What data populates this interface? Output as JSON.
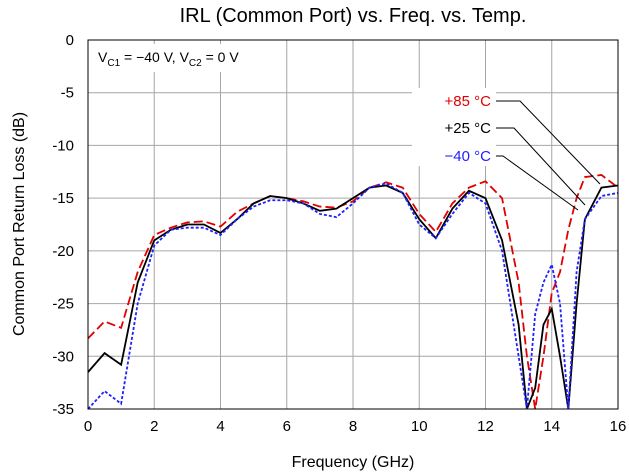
{
  "chart_data": {
    "type": "line",
    "title": "IRL (Common Port) vs. Freq. vs. Temp.",
    "xlabel": "Frequency (GHz)",
    "ylabel": "Common Port Return Loss (dB)",
    "annotation": [
      "V",
      "C1",
      " = −40 V, V",
      "C2",
      " = 0 V"
    ],
    "xlim": [
      0,
      16
    ],
    "xticks": [
      0,
      2,
      4,
      6,
      8,
      10,
      12,
      14,
      16
    ],
    "ylim": [
      -35,
      0
    ],
    "yticks": [
      0,
      -5,
      -10,
      -15,
      -20,
      -25,
      -30,
      -35
    ],
    "grid": true,
    "x": [
      0,
      0.5,
      1,
      1.5,
      2,
      2.5,
      3,
      3.5,
      4,
      4.5,
      5,
      5.5,
      6,
      6.5,
      7,
      7.5,
      8,
      8.5,
      9,
      9.5,
      10,
      10.5,
      11,
      11.5,
      12,
      12.5,
      13,
      13.25,
      13.5,
      13.75,
      14,
      14.25,
      14.5,
      14.75,
      15,
      15.5,
      16
    ],
    "series": [
      {
        "name": "+85 °C",
        "color": "#e00000",
        "dash": "9 4",
        "values": [
          -28.3,
          -26.7,
          -27.3,
          -22,
          -18.5,
          -17.8,
          -17.3,
          -17.2,
          -17.7,
          -16.3,
          -15.5,
          -14.8,
          -15,
          -15.3,
          -15.8,
          -15.9,
          -15.3,
          -14,
          -13.5,
          -14,
          -16.5,
          -18.2,
          -15.5,
          -14,
          -13.4,
          -15,
          -23,
          -30,
          -35,
          -30,
          -24,
          -22,
          -18,
          -15,
          -13,
          -12.8,
          -14
        ]
      },
      {
        "name": "+25 °C",
        "color": "#000000",
        "dash": "none",
        "values": [
          -31.5,
          -29.7,
          -30.8,
          -23,
          -19,
          -18,
          -17.5,
          -17.5,
          -18.3,
          -17,
          -15.5,
          -14.8,
          -15,
          -15.5,
          -16.2,
          -16,
          -15,
          -14,
          -13.8,
          -14.5,
          -17,
          -18.8,
          -16,
          -14.3,
          -15,
          -19,
          -27,
          -35,
          -33,
          -27,
          -25.5,
          -30,
          -35,
          -25,
          -17,
          -14,
          -13.8
        ]
      },
      {
        "name": "−40 °C",
        "color": "#1f1fff",
        "dash": "3 2",
        "values": [
          -35,
          -33.3,
          -34.5,
          -25,
          -19.5,
          -18,
          -17.8,
          -17.8,
          -18.5,
          -17,
          -15.8,
          -15.2,
          -15.2,
          -15.5,
          -16.5,
          -16.8,
          -15.5,
          -14,
          -13.6,
          -14.5,
          -17.5,
          -18.8,
          -16.5,
          -14.5,
          -15.5,
          -20,
          -30,
          -35,
          -26,
          -23,
          -21.3,
          -25,
          -35,
          -22,
          -17,
          -14.8,
          -14.5
        ]
      }
    ]
  }
}
